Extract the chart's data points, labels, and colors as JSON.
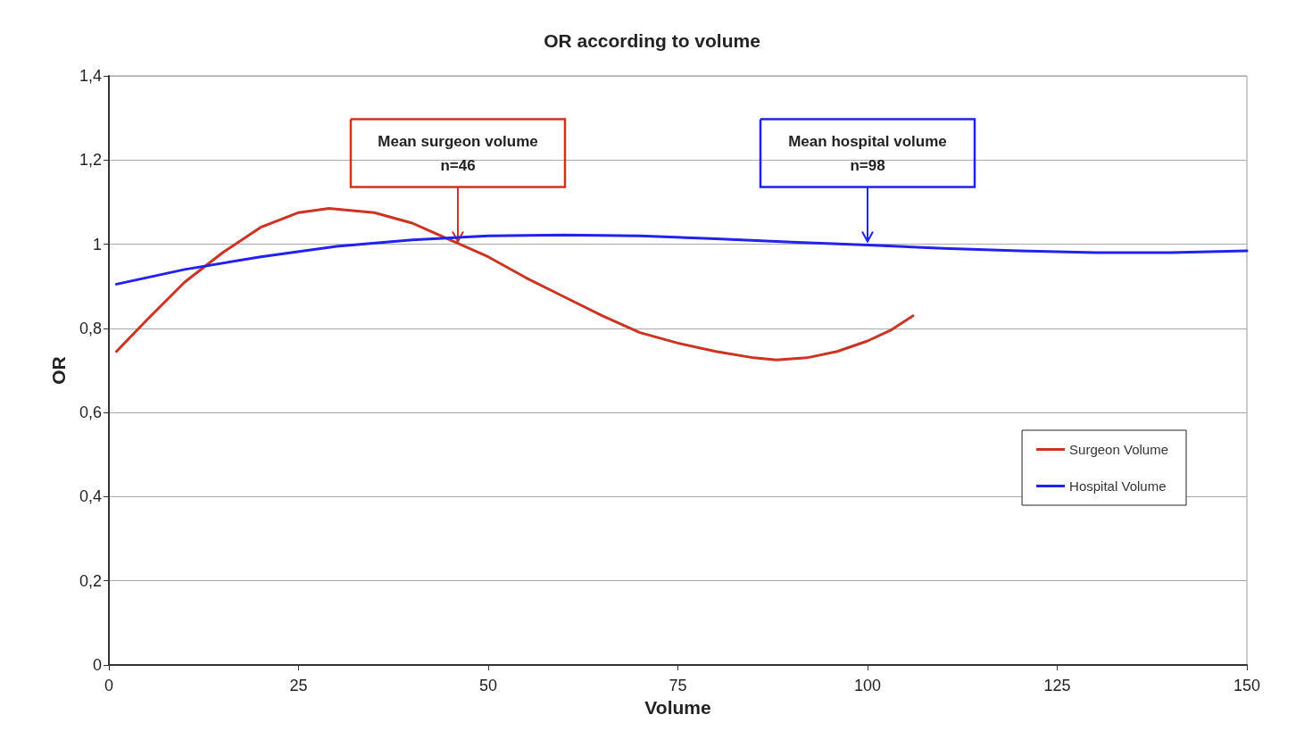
{
  "chart_data": {
    "type": "line",
    "title": "OR according to volume",
    "xlabel": "Volume",
    "ylabel": "OR",
    "xlim": [
      0,
      150
    ],
    "xticks": [
      0,
      25,
      50,
      75,
      100,
      125,
      150
    ],
    "ylim": [
      0,
      1.4
    ],
    "yticks": [
      0,
      {
        "value": 0.2,
        "label": "0,2"
      },
      {
        "value": 0.4,
        "label": "0,4"
      },
      {
        "value": 0.6,
        "label": "0,6"
      },
      {
        "value": 0.8,
        "label": "0,8"
      },
      1,
      {
        "value": 1.2,
        "label": "1,2"
      },
      {
        "value": 1.4,
        "label": "1,4"
      }
    ],
    "grid": "y",
    "legend": "right",
    "series": [
      {
        "name": "Surgeon Volume",
        "color": "#cc3322",
        "x": [
          1,
          5,
          10,
          15,
          20,
          25,
          29,
          35,
          40,
          45,
          50,
          55,
          60,
          65,
          70,
          75,
          80,
          85,
          88,
          92,
          96,
          100,
          103,
          106
        ],
        "values": [
          0.745,
          0.82,
          0.91,
          0.98,
          1.04,
          1.075,
          1.085,
          1.075,
          1.05,
          1.01,
          0.97,
          0.92,
          0.875,
          0.83,
          0.79,
          0.765,
          0.745,
          0.73,
          0.725,
          0.73,
          0.745,
          0.77,
          0.795,
          0.83
        ]
      },
      {
        "name": "Hospital Volume",
        "color": "#2222ee",
        "x": [
          1,
          10,
          20,
          30,
          40,
          50,
          60,
          70,
          80,
          90,
          100,
          110,
          120,
          130,
          140,
          150
        ],
        "values": [
          0.905,
          0.94,
          0.97,
          0.995,
          1.01,
          1.02,
          1.022,
          1.02,
          1.013,
          1.005,
          0.998,
          0.99,
          0.984,
          0.98,
          0.98,
          0.984
        ]
      }
    ],
    "annotations": [
      {
        "text": "Mean surgeon volume\nn=46",
        "x": 46,
        "y": 1.0
      },
      {
        "text": "Mean hospital volume\nn=98",
        "x": 100,
        "y": 1.0
      }
    ]
  }
}
